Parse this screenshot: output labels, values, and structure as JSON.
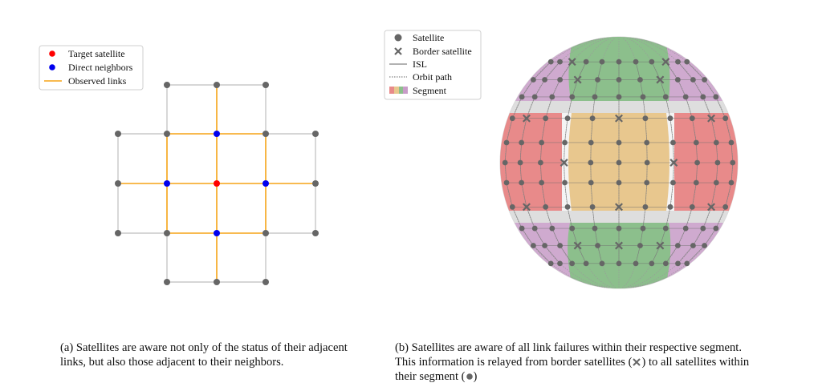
{
  "panel_a": {
    "legend": {
      "target": "Target satellite",
      "neighbors": "Direct neighbors",
      "links": "Observed links"
    },
    "caption": "(a) Satellites are aware not only of the status of their adjacent links, but also those adjacent to their neighbors."
  },
  "panel_b": {
    "legend": {
      "satellite": "Satellite",
      "border": "Border satellite",
      "isl": "ISL",
      "orbit": "Orbit path",
      "segment": "Segment"
    },
    "caption_line1": "(b) Satellites are aware of all link failures within their respective segment.",
    "caption_line2": "This information is relayed from border satellites (",
    "caption_line2_end": ") to all satellites within",
    "caption_line3": "their segment (",
    "caption_line3_end": ")"
  },
  "colors": {
    "target": "#ff0000",
    "neighbor": "#0000ee",
    "satellite": "#666666",
    "observed_link": "#f5a316",
    "grid_link": "#c8c8c8",
    "segment_purple": "#c89cc8",
    "segment_green": "#8cbf8c",
    "segment_red": "#e88a8a",
    "segment_yellow": "#e8c78e"
  }
}
